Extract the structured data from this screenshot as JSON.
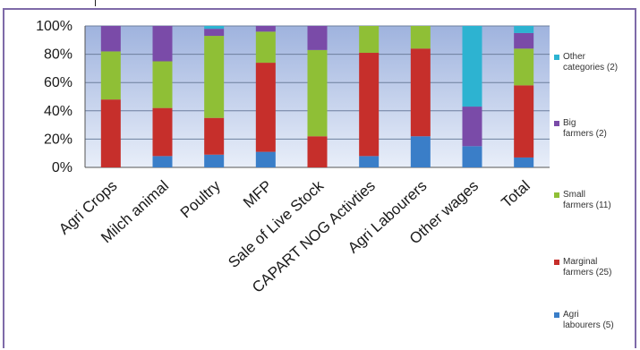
{
  "chart_data": {
    "type": "bar",
    "stacked": true,
    "percent": true,
    "title": "",
    "xlabel": "",
    "ylabel": "",
    "ylim": [
      0,
      100
    ],
    "yticks": [
      "0%",
      "20%",
      "40%",
      "60%",
      "80%",
      "100%"
    ],
    "grid": true,
    "legend_position": "right",
    "categories": [
      "Agri Crops",
      "Milch animal",
      "Poultry",
      "MFP",
      "Sale of Live Stock",
      "CAPART NOG Activties",
      "Agri Labourers",
      "Other wages",
      "Total"
    ],
    "series": [
      {
        "name": "Agri labourers (5)",
        "color": "#3a7ec8",
        "values": [
          0,
          8,
          9,
          11,
          0,
          8,
          22,
          15,
          7
        ]
      },
      {
        "name": "Marginal farmers (25)",
        "color": "#c62f2b",
        "values": [
          48,
          34,
          26,
          63,
          22,
          73,
          62,
          0,
          51
        ]
      },
      {
        "name": "Small farmers (11)",
        "color": "#8fbf36",
        "values": [
          34,
          33,
          58,
          22,
          61,
          19,
          16,
          0,
          26
        ]
      },
      {
        "name": "Big farmers (2)",
        "color": "#7a4ba8",
        "values": [
          18,
          25,
          5,
          4,
          17,
          0,
          0,
          28,
          11
        ]
      },
      {
        "name": "Other categories (2)",
        "color": "#2db3d1",
        "values": [
          0,
          0,
          2,
          0,
          0,
          0,
          0,
          57,
          5
        ]
      }
    ]
  }
}
